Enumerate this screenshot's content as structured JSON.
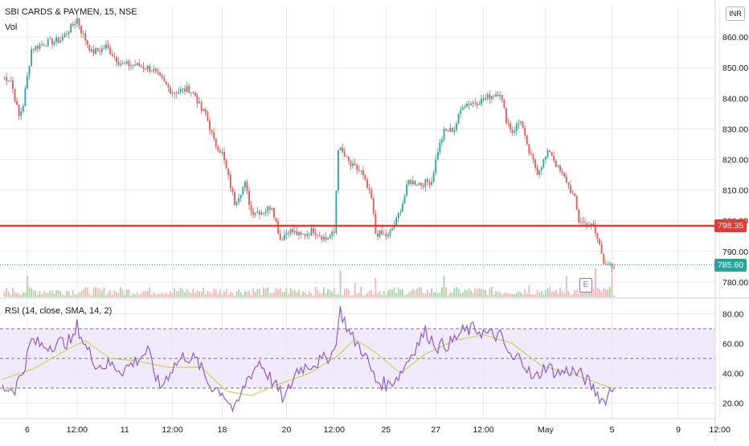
{
  "header": {
    "symbol": "SBI CARDS & PAYMEN, 15, NSE",
    "volume_label": "Vol",
    "currency": "INR"
  },
  "rsi_legend": "RSI (14, close, SMA, 14, 2)",
  "earnings_marker": "E",
  "colors": {
    "up": "#26a69a",
    "down": "#ef5350",
    "up_volume": "#a5d6a7",
    "down_volume": "#f5b5b3",
    "support_line": "#e53935",
    "last_price": "#26a69a",
    "rsi_line": "#8e5cd1",
    "rsi_sma": "#c6d94c",
    "rsi_band": "#ede4fb",
    "earnings": "#9c6ade",
    "grid": "#e7eaf0"
  },
  "chart_data": [
    {
      "type": "candlestick",
      "title": "SBI CARDS & PAYMEN, 15, NSE",
      "ylim": [
        775,
        870
      ],
      "y_ticks": [
        780,
        790,
        800,
        810,
        820,
        830,
        840,
        850,
        860
      ],
      "x_ticks": [
        "6",
        "12:00",
        "11",
        "12:00",
        "18",
        "20",
        "12:00",
        "25",
        "27",
        "12:00",
        "May",
        "5",
        "9",
        "12:00"
      ],
      "grid": true,
      "horizontal_line": {
        "value": 798.35,
        "label": "798.35"
      },
      "last_price": {
        "value": 785.6,
        "label": "785.60"
      },
      "anchors": [
        {
          "x": 0,
          "y": 847
        },
        {
          "x": 4,
          "y": 846
        },
        {
          "x": 6,
          "y": 840
        },
        {
          "x": 8,
          "y": 834
        },
        {
          "x": 10,
          "y": 838
        },
        {
          "x": 14,
          "y": 856
        },
        {
          "x": 20,
          "y": 858
        },
        {
          "x": 28,
          "y": 859
        },
        {
          "x": 34,
          "y": 864
        },
        {
          "x": 36,
          "y": 866
        },
        {
          "x": 38,
          "y": 862
        },
        {
          "x": 43,
          "y": 855
        },
        {
          "x": 48,
          "y": 856
        },
        {
          "x": 50,
          "y": 857
        },
        {
          "x": 56,
          "y": 852
        },
        {
          "x": 58,
          "y": 851
        },
        {
          "x": 63,
          "y": 851
        },
        {
          "x": 70,
          "y": 850
        },
        {
          "x": 73,
          "y": 849
        },
        {
          "x": 74,
          "y": 848
        },
        {
          "x": 82,
          "y": 842
        },
        {
          "x": 90,
          "y": 843
        },
        {
          "x": 93,
          "y": 841
        },
        {
          "x": 96,
          "y": 836
        },
        {
          "x": 98,
          "y": 835
        },
        {
          "x": 102,
          "y": 826
        },
        {
          "x": 106,
          "y": 822
        },
        {
          "x": 112,
          "y": 806
        },
        {
          "x": 117,
          "y": 812
        },
        {
          "x": 120,
          "y": 803
        },
        {
          "x": 126,
          "y": 803
        },
        {
          "x": 130,
          "y": 805
        },
        {
          "x": 134,
          "y": 794
        },
        {
          "x": 138,
          "y": 797
        },
        {
          "x": 144,
          "y": 795
        },
        {
          "x": 150,
          "y": 797
        },
        {
          "x": 156,
          "y": 794
        },
        {
          "x": 160,
          "y": 796
        },
        {
          "x": 162,
          "y": 824
        },
        {
          "x": 165,
          "y": 821
        },
        {
          "x": 168,
          "y": 818
        },
        {
          "x": 173,
          "y": 816
        },
        {
          "x": 178,
          "y": 807
        },
        {
          "x": 180,
          "y": 796
        },
        {
          "x": 186,
          "y": 795
        },
        {
          "x": 190,
          "y": 800
        },
        {
          "x": 193,
          "y": 806
        },
        {
          "x": 196,
          "y": 813
        },
        {
          "x": 202,
          "y": 812
        },
        {
          "x": 207,
          "y": 813
        },
        {
          "x": 210,
          "y": 823
        },
        {
          "x": 213,
          "y": 829
        },
        {
          "x": 218,
          "y": 830
        },
        {
          "x": 222,
          "y": 838
        },
        {
          "x": 230,
          "y": 839
        },
        {
          "x": 236,
          "y": 841
        },
        {
          "x": 240,
          "y": 842
        },
        {
          "x": 243,
          "y": 833
        },
        {
          "x": 246,
          "y": 829
        },
        {
          "x": 250,
          "y": 833
        },
        {
          "x": 253,
          "y": 824
        },
        {
          "x": 258,
          "y": 816
        },
        {
          "x": 264,
          "y": 823
        },
        {
          "x": 268,
          "y": 817
        },
        {
          "x": 272,
          "y": 813
        },
        {
          "x": 276,
          "y": 807
        },
        {
          "x": 278,
          "y": 800
        },
        {
          "x": 282,
          "y": 799
        },
        {
          "x": 285,
          "y": 798
        },
        {
          "x": 288,
          "y": 792
        },
        {
          "x": 290,
          "y": 787
        },
        {
          "x": 292,
          "y": 786
        },
        {
          "x": 294,
          "y": 784
        }
      ],
      "volume": {
        "baseline_ratio": 0.03,
        "spikes": [
          {
            "x": 12,
            "ratio": 0.45
          },
          {
            "x": 163,
            "ratio": 0.55
          },
          {
            "x": 180,
            "ratio": 0.4
          },
          {
            "x": 213,
            "ratio": 0.45
          },
          {
            "x": 272,
            "ratio": 0.45
          },
          {
            "x": 286,
            "ratio": 0.6
          },
          {
            "x": 294,
            "ratio": 0.5
          },
          {
            "x": 170,
            "ratio": 0.3
          },
          {
            "x": 254,
            "ratio": 0.25
          }
        ]
      }
    },
    {
      "type": "line",
      "title": "RSI (14, close, SMA, 14, 2)",
      "ylim": [
        10,
        90
      ],
      "y_ticks": [
        20.0,
        40.0,
        60.0,
        80.0
      ],
      "y_tick_labels": [
        "20.00",
        "40.00",
        "60.00",
        "80.00"
      ],
      "band": [
        30,
        70
      ],
      "midline": 50,
      "series": [
        {
          "role": "rsi",
          "anchors": [
            {
              "x": 0,
              "y": 30
            },
            {
              "x": 6,
              "y": 30
            },
            {
              "x": 10,
              "y": 42
            },
            {
              "x": 14,
              "y": 62
            },
            {
              "x": 20,
              "y": 58
            },
            {
              "x": 26,
              "y": 60
            },
            {
              "x": 34,
              "y": 62
            },
            {
              "x": 36,
              "y": 72
            },
            {
              "x": 40,
              "y": 58
            },
            {
              "x": 46,
              "y": 45
            },
            {
              "x": 52,
              "y": 46
            },
            {
              "x": 58,
              "y": 42
            },
            {
              "x": 64,
              "y": 48
            },
            {
              "x": 70,
              "y": 55
            },
            {
              "x": 76,
              "y": 30
            },
            {
              "x": 82,
              "y": 44
            },
            {
              "x": 88,
              "y": 52
            },
            {
              "x": 94,
              "y": 48
            },
            {
              "x": 100,
              "y": 32
            },
            {
              "x": 106,
              "y": 28
            },
            {
              "x": 112,
              "y": 14
            },
            {
              "x": 118,
              "y": 36
            },
            {
              "x": 124,
              "y": 48
            },
            {
              "x": 130,
              "y": 35
            },
            {
              "x": 136,
              "y": 22
            },
            {
              "x": 142,
              "y": 42
            },
            {
              "x": 148,
              "y": 46
            },
            {
              "x": 154,
              "y": 48
            },
            {
              "x": 160,
              "y": 55
            },
            {
              "x": 163,
              "y": 82
            },
            {
              "x": 168,
              "y": 65
            },
            {
              "x": 174,
              "y": 55
            },
            {
              "x": 180,
              "y": 35
            },
            {
              "x": 186,
              "y": 32
            },
            {
              "x": 192,
              "y": 40
            },
            {
              "x": 198,
              "y": 55
            },
            {
              "x": 204,
              "y": 68
            },
            {
              "x": 210,
              "y": 58
            },
            {
              "x": 216,
              "y": 60
            },
            {
              "x": 222,
              "y": 68
            },
            {
              "x": 228,
              "y": 70
            },
            {
              "x": 234,
              "y": 66
            },
            {
              "x": 240,
              "y": 65
            },
            {
              "x": 246,
              "y": 48
            },
            {
              "x": 250,
              "y": 52
            },
            {
              "x": 256,
              "y": 35
            },
            {
              "x": 262,
              "y": 45
            },
            {
              "x": 268,
              "y": 40
            },
            {
              "x": 274,
              "y": 42
            },
            {
              "x": 280,
              "y": 38
            },
            {
              "x": 286,
              "y": 28
            },
            {
              "x": 290,
              "y": 21
            },
            {
              "x": 294,
              "y": 30
            }
          ]
        },
        {
          "role": "sma",
          "anchors": [
            {
              "x": 0,
              "y": 36
            },
            {
              "x": 15,
              "y": 43
            },
            {
              "x": 30,
              "y": 55
            },
            {
              "x": 40,
              "y": 62
            },
            {
              "x": 52,
              "y": 50
            },
            {
              "x": 66,
              "y": 48
            },
            {
              "x": 80,
              "y": 44
            },
            {
              "x": 96,
              "y": 44
            },
            {
              "x": 108,
              "y": 28
            },
            {
              "x": 120,
              "y": 25
            },
            {
              "x": 132,
              "y": 32
            },
            {
              "x": 148,
              "y": 40
            },
            {
              "x": 162,
              "y": 52
            },
            {
              "x": 170,
              "y": 63
            },
            {
              "x": 180,
              "y": 54
            },
            {
              "x": 192,
              "y": 40
            },
            {
              "x": 204,
              "y": 53
            },
            {
              "x": 218,
              "y": 62
            },
            {
              "x": 232,
              "y": 66
            },
            {
              "x": 246,
              "y": 60
            },
            {
              "x": 260,
              "y": 45
            },
            {
              "x": 274,
              "y": 40
            },
            {
              "x": 286,
              "y": 34
            },
            {
              "x": 294,
              "y": 30
            }
          ]
        }
      ]
    }
  ]
}
